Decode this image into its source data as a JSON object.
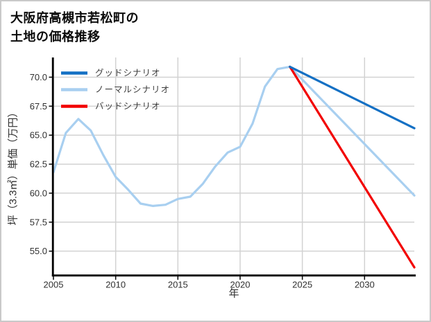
{
  "title": {
    "line1": "大阪府高槻市若松町の",
    "line2": "土地の価格推移"
  },
  "chart_data": {
    "type": "line",
    "title": "大阪府高槻市若松町の土地の価格推移",
    "xlabel": "年",
    "ylabel": "坪（3.3㎡）単価（万円）",
    "xlim": [
      2005,
      2034
    ],
    "ylim": [
      52.95,
      71.7
    ],
    "xticks": [
      2005,
      2010,
      2015,
      2020,
      2025,
      2030
    ],
    "yticks": [
      70.0,
      67.5,
      65.0,
      62.5,
      60.0,
      57.5,
      55.0
    ],
    "grid": true,
    "legend_position": "upper-left",
    "style": {
      "grid_color": "#d2d2d2",
      "spine_color": "#000000",
      "tick_text_color": "#303030",
      "background": "#ffffff"
    },
    "series": [
      {
        "name": "グッドシナリオ",
        "color": "#1470c4",
        "x": [
          2024,
          2034
        ],
        "values": [
          70.9,
          65.6
        ]
      },
      {
        "name": "ノーマルシナリオ",
        "color": "#a8cff0",
        "x": [
          2005,
          2006,
          2007,
          2008,
          2009,
          2010,
          2011,
          2012,
          2013,
          2014,
          2015,
          2016,
          2017,
          2018,
          2019,
          2020,
          2021,
          2022,
          2023,
          2024,
          2034
        ],
        "values": [
          61.8,
          65.2,
          66.4,
          65.4,
          63.3,
          61.4,
          60.3,
          59.1,
          58.9,
          59.0,
          59.5,
          59.7,
          60.8,
          62.3,
          63.5,
          64.0,
          66.0,
          69.2,
          70.7,
          70.9,
          59.8
        ]
      },
      {
        "name": "バッドシナリオ",
        "color": "#f20000",
        "x": [
          2024,
          2034
        ],
        "values": [
          70.9,
          53.6
        ]
      }
    ]
  }
}
